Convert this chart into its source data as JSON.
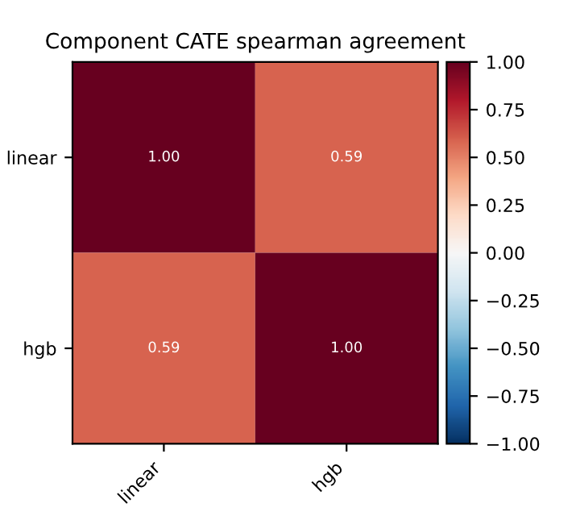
{
  "chart_data": {
    "type": "heatmap",
    "title": "Component CATE spearman agreement",
    "categories": [
      "linear",
      "hgb"
    ],
    "y_categories": [
      "linear",
      "hgb"
    ],
    "cells": [
      [
        1.0,
        0.59
      ],
      [
        0.59,
        1.0
      ]
    ],
    "cell_labels": [
      [
        "1.00",
        "0.59"
      ],
      [
        "0.59",
        "1.00"
      ]
    ],
    "clim": [
      -1,
      1
    ],
    "cticks": [
      {
        "value": -1,
        "label": "−1.00"
      },
      {
        "value": -0.75,
        "label": "−0.75"
      },
      {
        "value": -0.5,
        "label": "−0.50"
      },
      {
        "value": -0.25,
        "label": "−0.25"
      },
      {
        "value": 0,
        "label": "0.00"
      },
      {
        "value": 0.25,
        "label": "0.25"
      },
      {
        "value": 0.5,
        "label": "0.50"
      },
      {
        "value": 0.75,
        "label": "0.75"
      },
      {
        "value": 1,
        "label": "1.00"
      }
    ]
  }
}
